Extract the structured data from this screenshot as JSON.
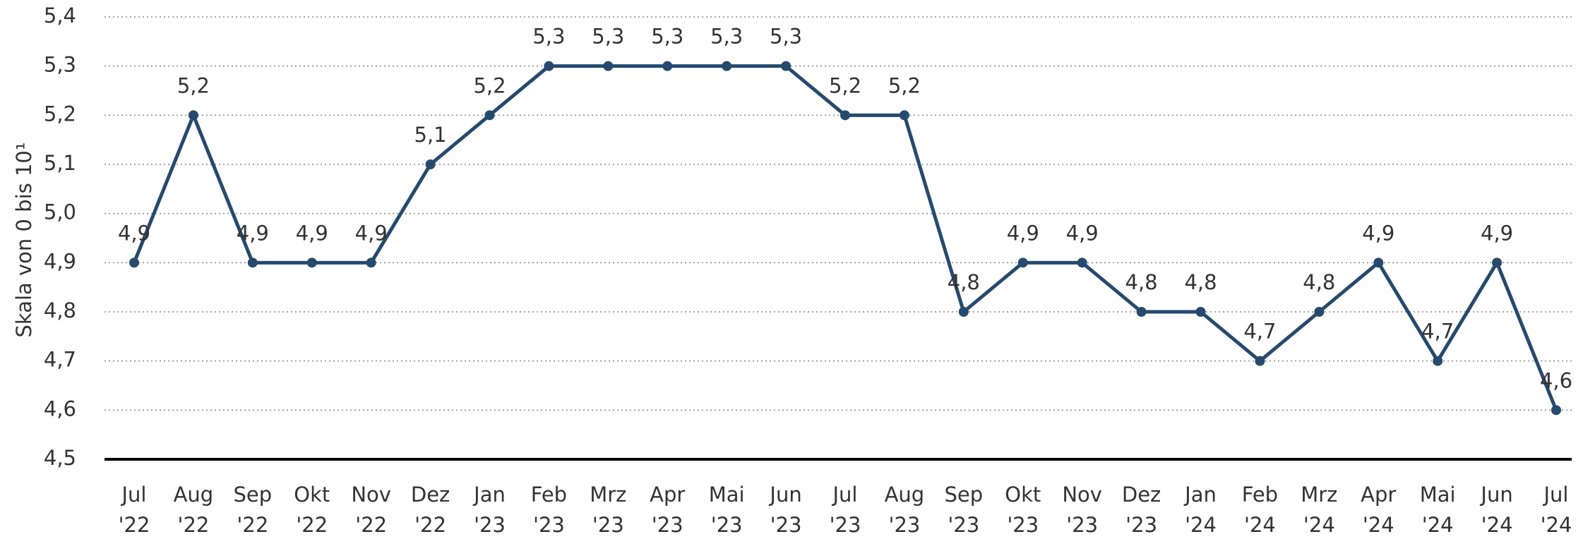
{
  "chart_data": {
    "type": "line",
    "y_label": "Skala von 0 bis 10¹",
    "categories": [
      "Jul '22",
      "Aug '22",
      "Sep '22",
      "Okt '22",
      "Nov '22",
      "Dez '22",
      "Jan '23",
      "Feb '23",
      "Mrz '23",
      "Apr '23",
      "Mai '23",
      "Jun '23",
      "Jul '23",
      "Aug '23",
      "Sep '23",
      "Okt '23",
      "Nov '23",
      "Dez '23",
      "Jan '24",
      "Feb '24",
      "Mrz '24",
      "Apr '24",
      "Mai '24",
      "Jun '24",
      "Jul '24"
    ],
    "series": [
      {
        "name": "Skala",
        "color": "#264a6e",
        "values": [
          4.9,
          5.2,
          4.9,
          4.9,
          4.9,
          5.1,
          5.2,
          5.3,
          5.3,
          5.3,
          5.3,
          5.3,
          5.2,
          5.2,
          4.8,
          4.9,
          4.9,
          4.8,
          4.8,
          4.7,
          4.8,
          4.9,
          4.7,
          4.9,
          4.6
        ],
        "value_labels": [
          "4,9",
          "5,2",
          "4,9",
          "4,9",
          "4,9",
          "5,1",
          "5,2",
          "5,3",
          "5,3",
          "5,3",
          "5,3",
          "5,3",
          "5,2",
          "5,2",
          "4,8",
          "4,9",
          "4,9",
          "4,8",
          "4,8",
          "4,7",
          "4,8",
          "4,9",
          "4,7",
          "4,9",
          "4,6"
        ]
      }
    ],
    "ylim": [
      4.5,
      5.4
    ],
    "yticks": [
      {
        "value": 4.5,
        "label": "4,5"
      },
      {
        "value": 4.6,
        "label": "4,6"
      },
      {
        "value": 4.7,
        "label": "4,7"
      },
      {
        "value": 4.8,
        "label": "4,8"
      },
      {
        "value": 4.9,
        "label": "4,9"
      },
      {
        "value": 5.0,
        "label": "5,0"
      },
      {
        "value": 5.1,
        "label": "5,1"
      },
      {
        "value": 5.2,
        "label": "5,2"
      },
      {
        "value": 5.3,
        "label": "5,3"
      },
      {
        "value": 5.4,
        "label": "5,4"
      }
    ],
    "grid": true
  }
}
